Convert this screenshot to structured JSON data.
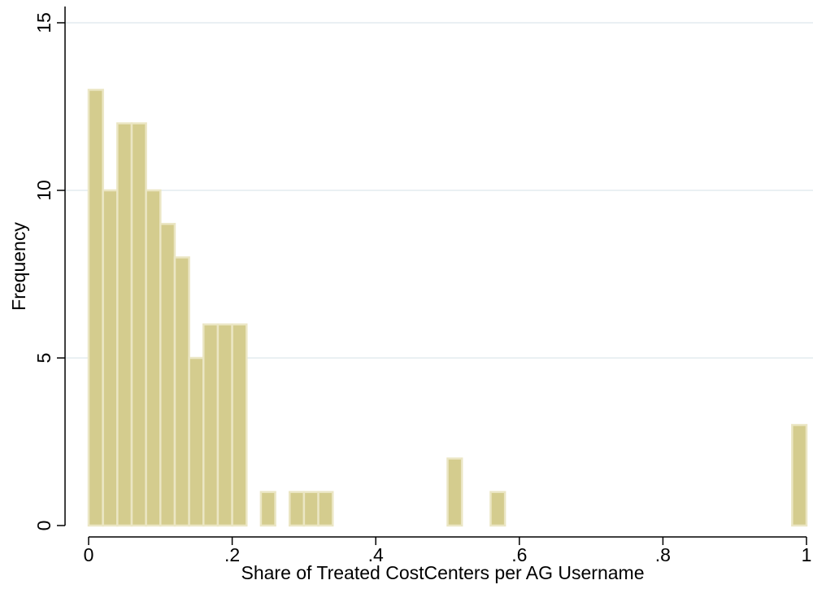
{
  "chart_data": {
    "type": "bar",
    "subtype": "histogram",
    "title": "",
    "xlabel": "Share of Treated CostCenters per AG Username",
    "ylabel": "Frequency",
    "xlim": [
      0,
      1
    ],
    "ylim": [
      0,
      15
    ],
    "x_ticks": [
      {
        "value": 0,
        "label": "0"
      },
      {
        "value": 0.2,
        "label": ".2"
      },
      {
        "value": 0.4,
        "label": ".4"
      },
      {
        "value": 0.6,
        "label": ".6"
      },
      {
        "value": 0.8,
        "label": ".8"
      },
      {
        "value": 1,
        "label": "1"
      }
    ],
    "y_ticks": [
      {
        "value": 0,
        "label": "0"
      },
      {
        "value": 5,
        "label": "5"
      },
      {
        "value": 10,
        "label": "10"
      },
      {
        "value": 15,
        "label": "15"
      }
    ],
    "grid": "horizontal",
    "bin_width": 0.02,
    "bins": [
      {
        "start": 0.0,
        "count": 13
      },
      {
        "start": 0.02,
        "count": 10
      },
      {
        "start": 0.04,
        "count": 12
      },
      {
        "start": 0.06,
        "count": 12
      },
      {
        "start": 0.08,
        "count": 10
      },
      {
        "start": 0.1,
        "count": 9
      },
      {
        "start": 0.12,
        "count": 8
      },
      {
        "start": 0.14,
        "count": 5
      },
      {
        "start": 0.16,
        "count": 6
      },
      {
        "start": 0.18,
        "count": 6
      },
      {
        "start": 0.2,
        "count": 6
      },
      {
        "start": 0.24,
        "count": 1
      },
      {
        "start": 0.28,
        "count": 1
      },
      {
        "start": 0.3,
        "count": 1
      },
      {
        "start": 0.32,
        "count": 1
      },
      {
        "start": 0.5,
        "count": 2
      },
      {
        "start": 0.56,
        "count": 1
      },
      {
        "start": 0.98,
        "count": 3
      }
    ],
    "colors": {
      "bar_fill": "#d4cc8e",
      "bar_stroke": "#ebe6c4",
      "grid": "#e3ecef",
      "axis": "#000000"
    }
  }
}
